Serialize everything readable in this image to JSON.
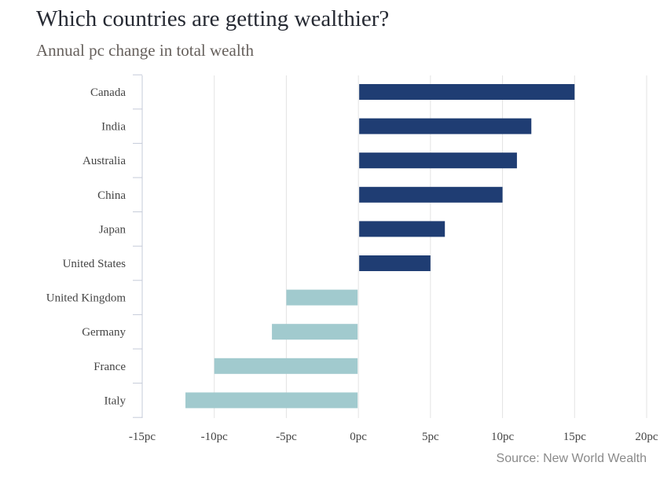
{
  "header": {
    "title": "Which countries are getting wealthier?",
    "subtitle": "Annual pc change in total wealth"
  },
  "footer": {
    "source": "Source: New World Wealth"
  },
  "colors": {
    "positive": "#1f3d73",
    "negative": "#a1cace",
    "grid": "#e3e3e3",
    "axis": "#c5cbd9"
  },
  "chart_data": {
    "type": "bar",
    "orientation": "horizontal",
    "categories": [
      "Canada",
      "India",
      "Australia",
      "China",
      "Japan",
      "United States",
      "United Kingdom",
      "Germany",
      "France",
      "Italy"
    ],
    "values": [
      15,
      12,
      11,
      10,
      6,
      5,
      -5,
      -6,
      -10,
      -12
    ],
    "xlim": [
      -15,
      20
    ],
    "xticks": [
      -15,
      -10,
      -5,
      0,
      5,
      10,
      15,
      20
    ],
    "xtick_labels": [
      "-15pc",
      "-10pc",
      "-5pc",
      "0pc",
      "5pc",
      "10pc",
      "15pc",
      "20pc"
    ],
    "title": "Which countries are getting wealthier?",
    "subtitle": "Annual pc change in total wealth",
    "xlabel": "",
    "ylabel": "",
    "grid": "vertical",
    "legend": "none"
  }
}
